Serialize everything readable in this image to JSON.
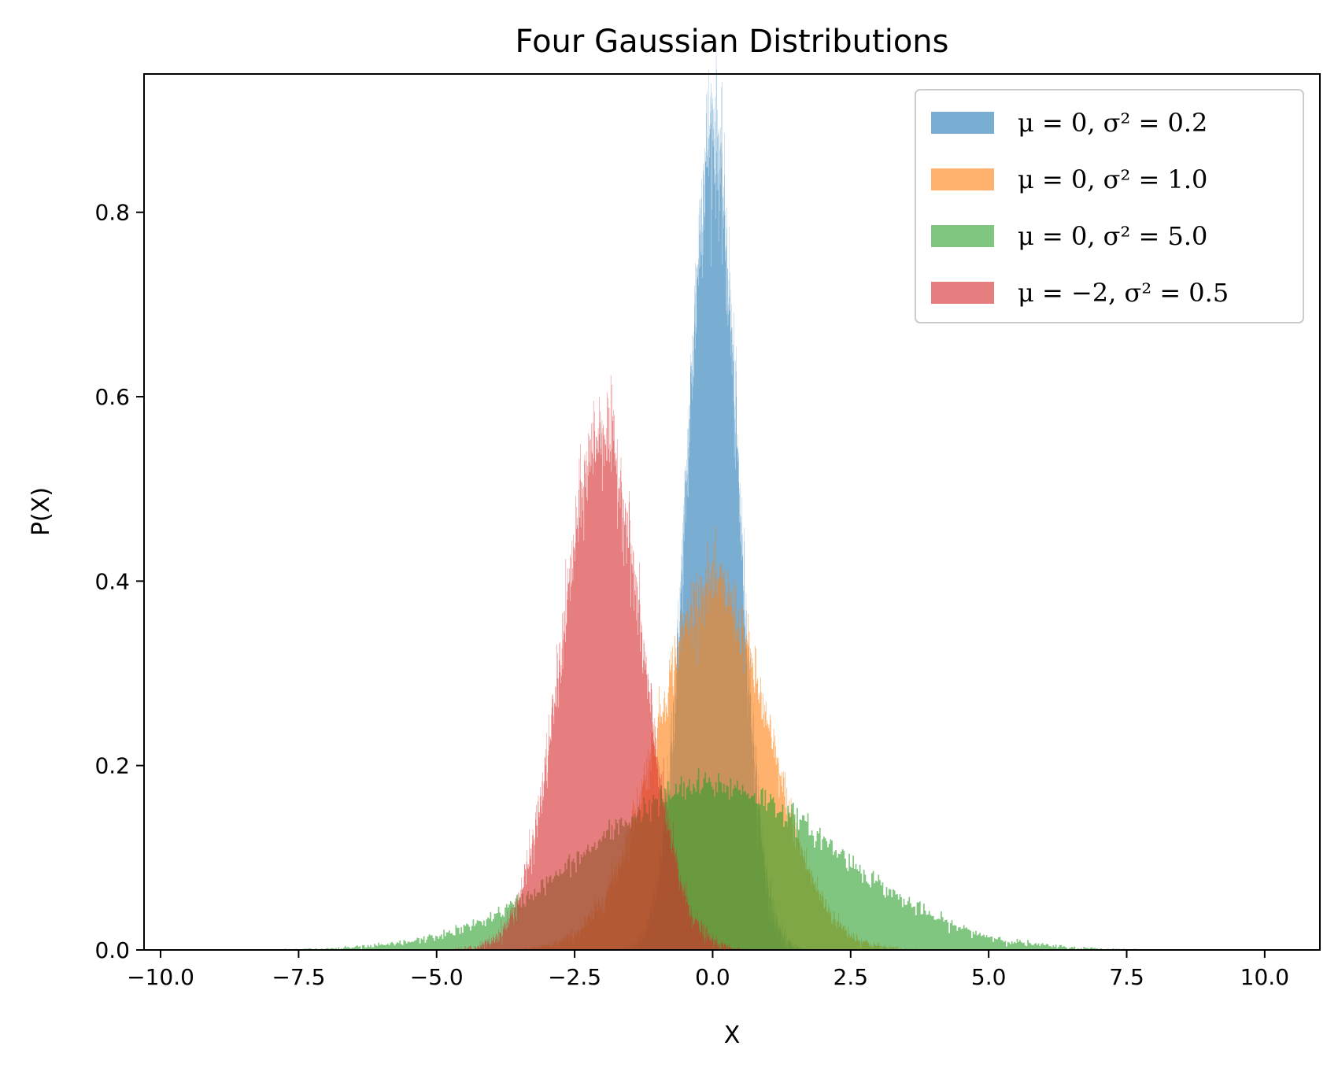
{
  "chart_data": {
    "type": "histogram",
    "title": "Four Gaussian Distributions",
    "xlabel": "X",
    "ylabel": "P(X)",
    "xlim": [
      -10.3,
      11.0
    ],
    "ylim": [
      0.0,
      0.95
    ],
    "xticks": [
      -10.0,
      -7.5,
      -5.0,
      -2.5,
      0.0,
      2.5,
      5.0,
      7.5,
      10.0
    ],
    "xtick_labels": [
      "−10.0",
      "−7.5",
      "−5.0",
      "−2.5",
      "0.0",
      "2.5",
      "5.0",
      "7.5",
      "10.0"
    ],
    "yticks": [
      0.0,
      0.2,
      0.4,
      0.6,
      0.8
    ],
    "ytick_labels": [
      "0.0",
      "0.2",
      "0.4",
      "0.6",
      "0.8"
    ],
    "grid": false,
    "legend_position": "top-right",
    "density": true,
    "opacity": 0.6,
    "series": [
      {
        "name": "μ = 0, σ² = 0.2",
        "mean": 0,
        "variance": 0.2,
        "color": "#1f77b4"
      },
      {
        "name": "μ = 0, σ² = 1.0",
        "mean": 0,
        "variance": 1.0,
        "color": "#ff7f0e"
      },
      {
        "name": "μ = 0, σ² = 5.0",
        "mean": 0,
        "variance": 5.0,
        "color": "#2ca02c"
      },
      {
        "name": "μ = −2, σ² = 0.5",
        "mean": -2,
        "variance": 0.5,
        "color": "#d62728"
      }
    ]
  }
}
